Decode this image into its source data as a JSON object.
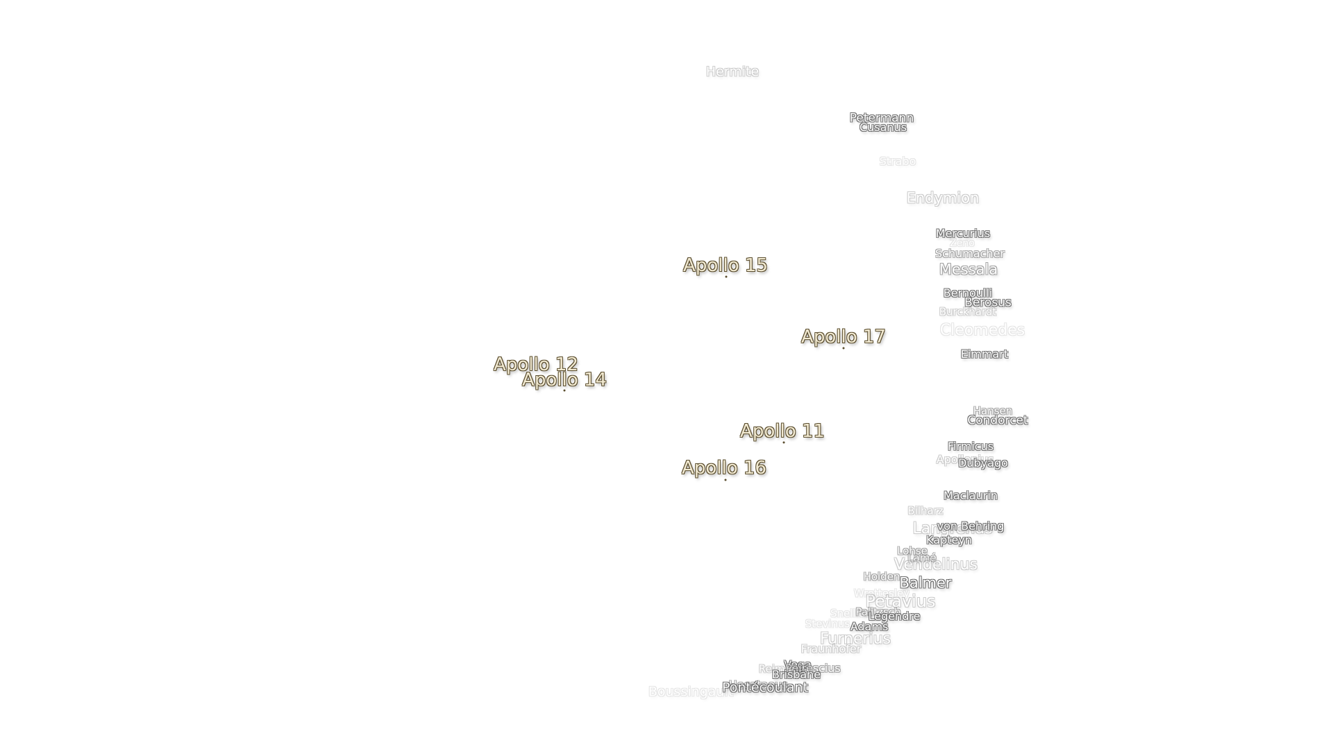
{
  "apollo_sites": [
    {
      "id": "apollo-15",
      "label": "Apollo 15"
    },
    {
      "id": "apollo-17",
      "label": "Apollo 17"
    },
    {
      "id": "apollo-12",
      "label": "Apollo 12"
    },
    {
      "id": "apollo-14",
      "label": "Apollo 14"
    },
    {
      "id": "apollo-11",
      "label": "Apollo 11"
    },
    {
      "id": "apollo-16",
      "label": "Apollo 16"
    }
  ],
  "craters": [
    {
      "id": "hermite",
      "label": "Hermite"
    },
    {
      "id": "petermann",
      "label": "Petermann"
    },
    {
      "id": "cusanus",
      "label": "Cusanus"
    },
    {
      "id": "strabo",
      "label": "Strabo"
    },
    {
      "id": "endymion",
      "label": "Endymion"
    },
    {
      "id": "mercurius",
      "label": "Mercurius"
    },
    {
      "id": "zeno",
      "label": "Zeno"
    },
    {
      "id": "schumacher",
      "label": "Schumacher"
    },
    {
      "id": "messala",
      "label": "Messala"
    },
    {
      "id": "bernoulli",
      "label": "Bernoulli"
    },
    {
      "id": "berosus",
      "label": "Berosus"
    },
    {
      "id": "burckhardt",
      "label": "Burckhardt"
    },
    {
      "id": "cleomedes",
      "label": "Cleomedes"
    },
    {
      "id": "eimmart",
      "label": "Eimmart"
    },
    {
      "id": "hansen",
      "label": "Hansen"
    },
    {
      "id": "condorcet",
      "label": "Condorcet"
    },
    {
      "id": "firmicus",
      "label": "Firmicus"
    },
    {
      "id": "apollonius",
      "label": "Apollonius"
    },
    {
      "id": "dubyago",
      "label": "Dubyago"
    },
    {
      "id": "maclaurin",
      "label": "Maclaurin"
    },
    {
      "id": "bilharz",
      "label": "Bilharz"
    },
    {
      "id": "langrenus",
      "label": "Langrenus"
    },
    {
      "id": "von-behring",
      "label": "von Behring"
    },
    {
      "id": "kapteyn",
      "label": "Kapteyn"
    },
    {
      "id": "lohse",
      "label": "Lohse"
    },
    {
      "id": "lame",
      "label": "Lamé"
    },
    {
      "id": "vendelinus",
      "label": "Vendelinus"
    },
    {
      "id": "holden",
      "label": "Holden"
    },
    {
      "id": "balmer",
      "label": "Balmer"
    },
    {
      "id": "wrottesley",
      "label": "Wrottesley"
    },
    {
      "id": "petavius",
      "label": "Petavius"
    },
    {
      "id": "snellius",
      "label": "Snellius"
    },
    {
      "id": "palitzsch",
      "label": "Palitzsch"
    },
    {
      "id": "legendre",
      "label": "Legendre"
    },
    {
      "id": "adams",
      "label": "Adams"
    },
    {
      "id": "stevinus",
      "label": "Stevinus"
    },
    {
      "id": "furnerius",
      "label": "Furnerius"
    },
    {
      "id": "fraunhofer",
      "label": "Fraunhofer"
    },
    {
      "id": "vega",
      "label": "Vega"
    },
    {
      "id": "reimarus",
      "label": "Reimarus"
    },
    {
      "id": "peirescius",
      "label": "Peirescius"
    },
    {
      "id": "brisbane",
      "label": "Brisbane"
    },
    {
      "id": "hecataeus",
      "label": "Hecataeus"
    },
    {
      "id": "pontecoulant",
      "label": "Pontécoulant"
    },
    {
      "id": "boussingault",
      "label": "Boussingault"
    }
  ]
}
